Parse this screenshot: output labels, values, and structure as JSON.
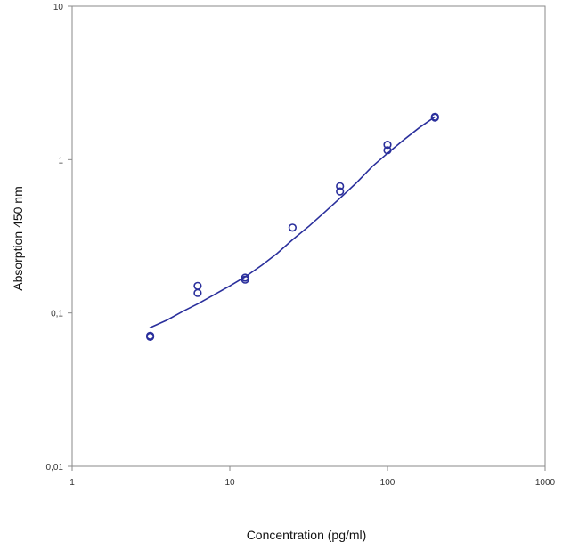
{
  "chart_data": {
    "type": "scatter",
    "title": "",
    "xlabel": "Concentration (pg/ml)",
    "ylabel": "Absorption 450 nm",
    "xscale": "log",
    "yscale": "log",
    "xlim": [
      1,
      1000
    ],
    "ylim": [
      0.01,
      10
    ],
    "xticks": [
      1,
      10,
      100,
      1000
    ],
    "xtick_labels": [
      "1",
      "10",
      "100",
      "1000"
    ],
    "yticks": [
      0.01,
      0.1,
      1,
      10
    ],
    "ytick_labels": [
      "0,01",
      "0,1",
      "1",
      "10"
    ],
    "grid": false,
    "legend": "none",
    "colors": {
      "marker": "#2a2f9c",
      "curve": "#2a2f9c",
      "axis": "#8a8a8a"
    },
    "points": [
      {
        "x": 3.125,
        "y": 0.07
      },
      {
        "x": 3.125,
        "y": 0.071
      },
      {
        "x": 6.25,
        "y": 0.135
      },
      {
        "x": 6.25,
        "y": 0.15
      },
      {
        "x": 12.5,
        "y": 0.17
      },
      {
        "x": 12.5,
        "y": 0.165
      },
      {
        "x": 25,
        "y": 0.36
      },
      {
        "x": 50,
        "y": 0.62
      },
      {
        "x": 50,
        "y": 0.67
      },
      {
        "x": 100,
        "y": 1.15
      },
      {
        "x": 100,
        "y": 1.25
      },
      {
        "x": 200,
        "y": 1.9
      },
      {
        "x": 200,
        "y": 1.88
      }
    ],
    "fit_curve": {
      "name": "",
      "x": [
        3.1,
        4,
        5,
        6.3,
        8,
        10,
        12.5,
        16,
        20,
        25,
        32,
        40,
        50,
        63,
        80,
        100,
        125,
        160,
        200
      ],
      "y": [
        0.08,
        0.09,
        0.102,
        0.115,
        0.132,
        0.15,
        0.172,
        0.205,
        0.245,
        0.3,
        0.37,
        0.455,
        0.56,
        0.7,
        0.9,
        1.1,
        1.33,
        1.62,
        1.9
      ]
    }
  }
}
